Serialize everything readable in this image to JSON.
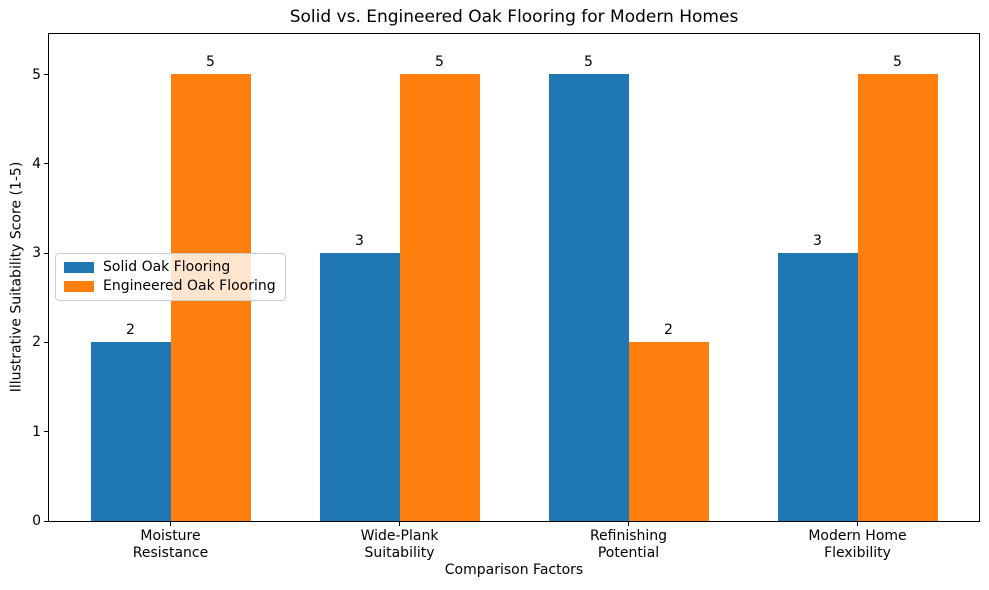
{
  "chart_data": {
    "type": "bar",
    "title": "Solid vs. Engineered Oak Flooring for Modern Homes",
    "xlabel": "Comparison Factors",
    "ylabel": "Illustrative Suitability Score (1-5)",
    "categories": [
      [
        "Moisture",
        "Resistance"
      ],
      [
        "Wide-Plank",
        "Suitability"
      ],
      [
        "Refinishing",
        "Potential"
      ],
      [
        "Modern Home",
        "Flexibility"
      ]
    ],
    "series": [
      {
        "name": "Solid Oak Flooring",
        "color": "#1f77b4",
        "values": [
          2,
          3,
          5,
          3
        ]
      },
      {
        "name": "Engineered Oak Flooring",
        "color": "#ff7f0e",
        "values": [
          5,
          5,
          2,
          5
        ]
      }
    ],
    "yticks": [
      0,
      1,
      2,
      3,
      4,
      5
    ],
    "ylim": [
      0,
      5.49
    ],
    "show_value_labels": true,
    "grid": false,
    "legend_position": "center left"
  }
}
